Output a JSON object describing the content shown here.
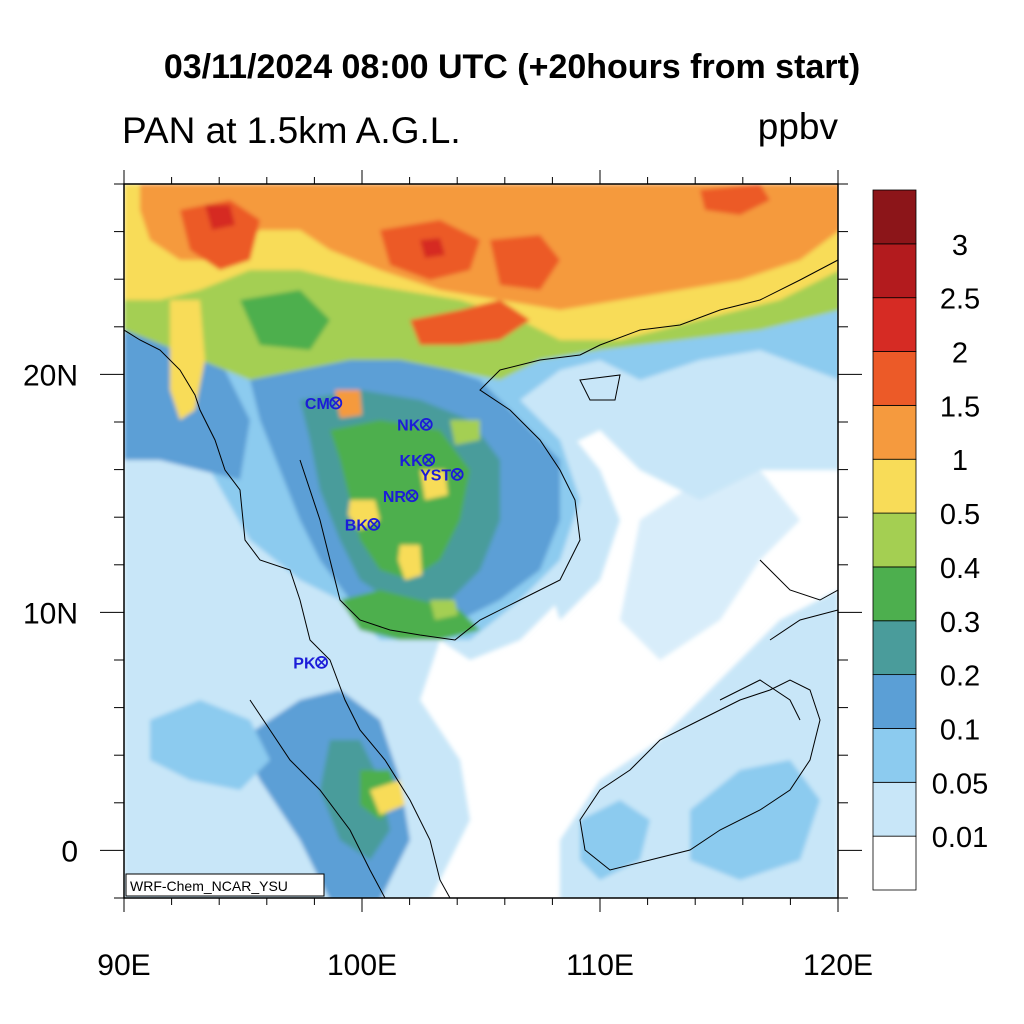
{
  "title": "03/11/2024 08:00 UTC (+20hours from start)",
  "left_string": "PAN at 1.5km A.G.L.",
  "right_string": "ppbv",
  "model_label": "WRF-Chem_NCAR_YSU",
  "lon_labels": [
    "90E",
    "100E",
    "110E",
    "120E"
  ],
  "lat_labels": [
    "20N",
    "10N",
    "0"
  ],
  "colorbar": {
    "levels": [
      "0.01",
      "0.05",
      "0.1",
      "0.2",
      "0.3",
      "0.4",
      "0.5",
      "1",
      "1.5",
      "2",
      "2.5",
      "3"
    ],
    "colors": [
      "#ffffff",
      "#c8e6f8",
      "#8ccbef",
      "#5b9fd6",
      "#4a9c9b",
      "#4daf4e",
      "#a4cf52",
      "#f8dc58",
      "#f59a3e",
      "#ec5a28",
      "#d62b24",
      "#b31b1e",
      "#8c1519"
    ]
  },
  "stations": [
    {
      "name": "CM",
      "lon": 98.9,
      "lat": 18.8
    },
    {
      "name": "NK",
      "lon": 102.7,
      "lat": 17.9
    },
    {
      "name": "KK",
      "lon": 102.8,
      "lat": 16.4
    },
    {
      "name": "YST",
      "lon": 104.0,
      "lat": 15.8
    },
    {
      "name": "NR",
      "lon": 102.1,
      "lat": 14.9
    },
    {
      "name": "BK",
      "lon": 100.5,
      "lat": 13.7
    },
    {
      "name": "PK",
      "lon": 98.3,
      "lat": 7.9
    }
  ]
}
